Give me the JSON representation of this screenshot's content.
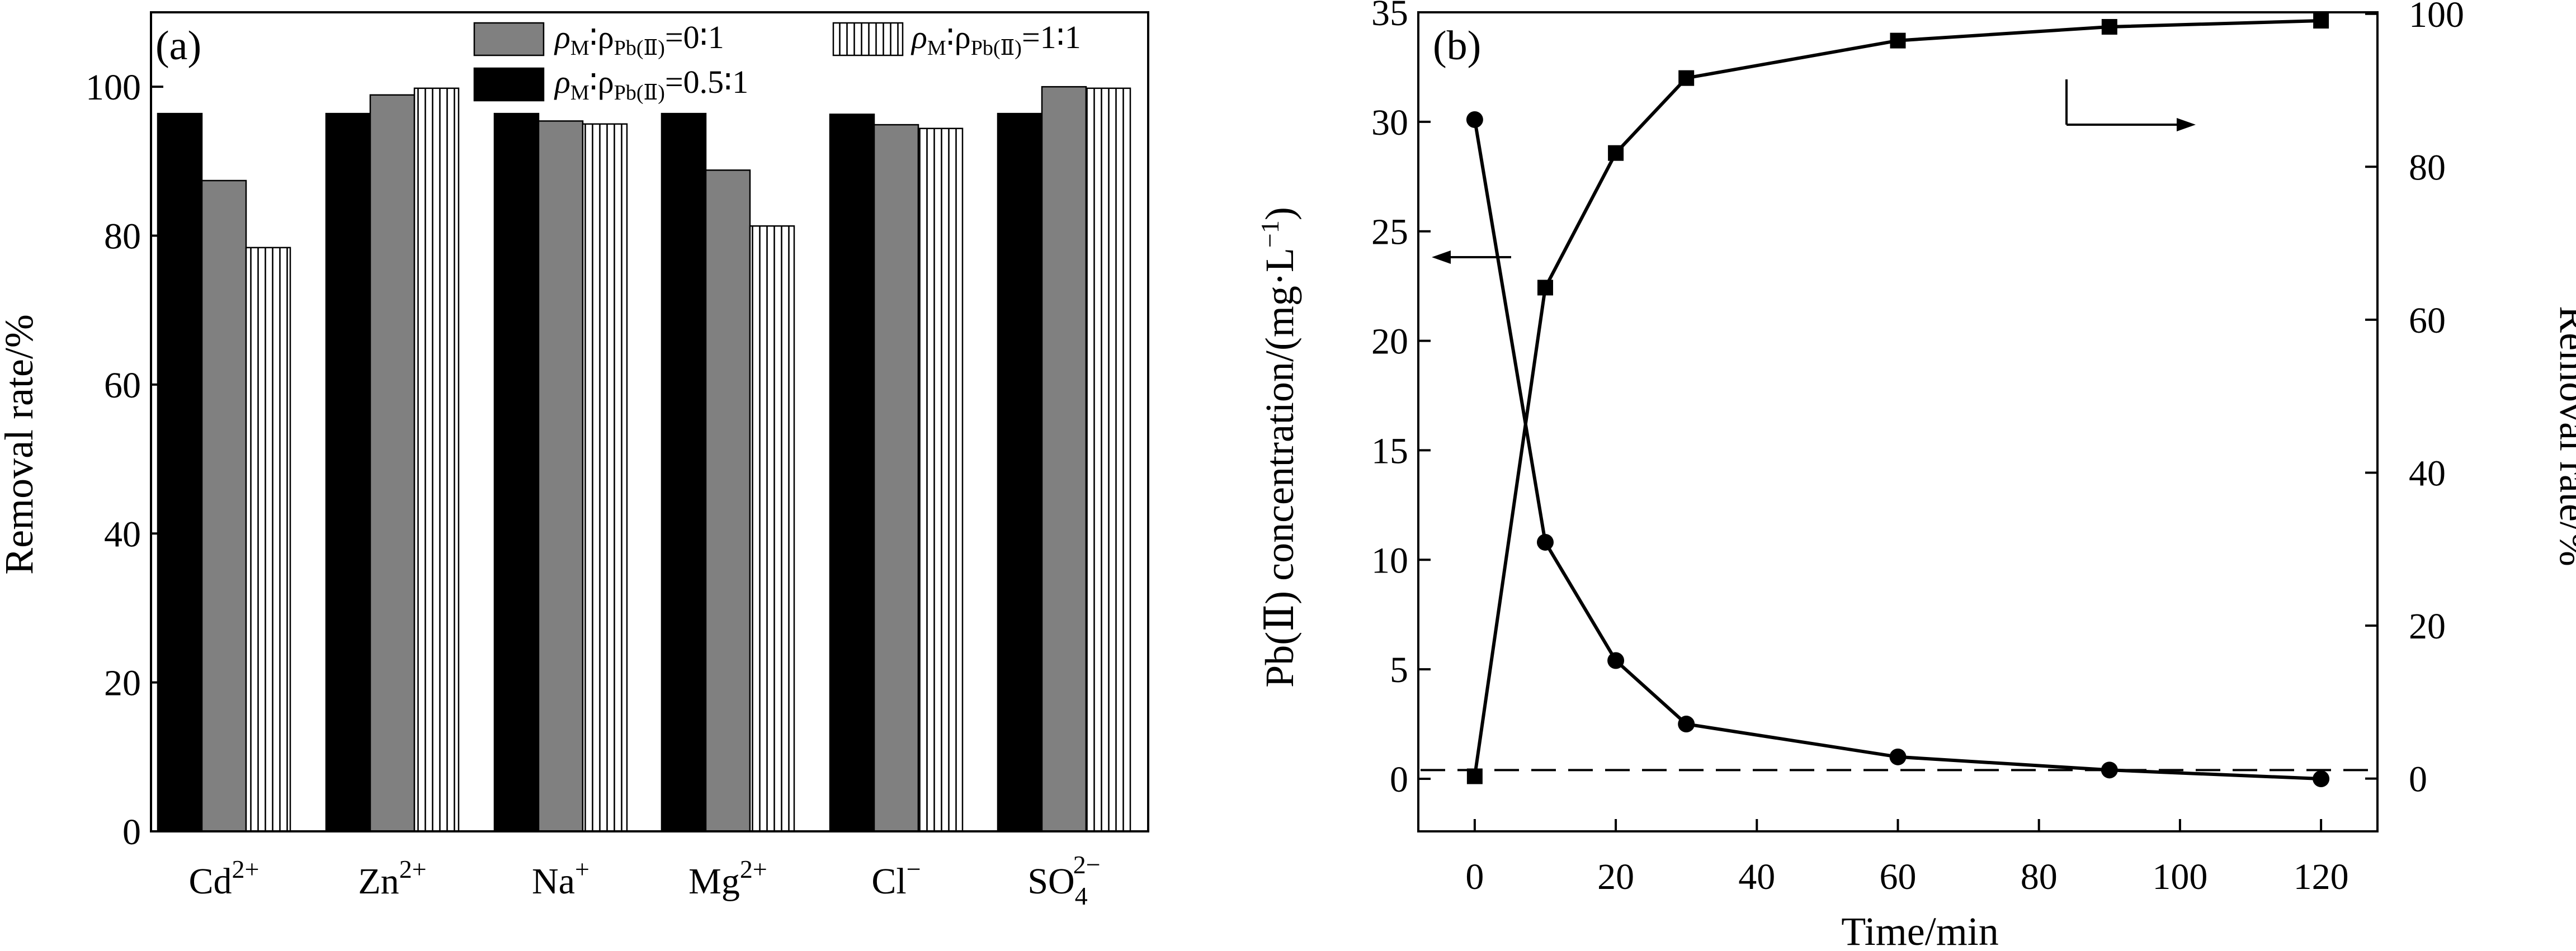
{
  "chart_data": [
    {
      "type": "bar",
      "panel_label": "(a)",
      "categories": [
        "Cd2+",
        "Zn2+",
        "Na+",
        "Mg2+",
        "Cl−",
        "SO42−"
      ],
      "category_labels": [
        {
          "base": "Cd",
          "sup": "2+",
          "sub": ""
        },
        {
          "base": "Zn",
          "sup": "2+",
          "sub": ""
        },
        {
          "base": "Na",
          "sup": "+",
          "sub": ""
        },
        {
          "base": "Mg",
          "sup": "2+",
          "sub": ""
        },
        {
          "base": "Cl",
          "sup": "−",
          "sub": ""
        },
        {
          "base": "SO",
          "sup": "2−",
          "sub": "4"
        }
      ],
      "series": [
        {
          "name": "ρM∶ρPb(Ⅱ)=0.5∶1",
          "legend": {
            "a": "ρ",
            "b": "M",
            "c": "∶ρ",
            "d": "Pb(Ⅱ)",
            "e": "=0.5∶1"
          },
          "fill": "#000000",
          "pattern": "solid",
          "values": [
            96.4,
            96.4,
            96.4,
            96.4,
            96.3,
            96.4
          ]
        },
        {
          "name": "ρM∶ρPb(Ⅱ)=0∶1",
          "legend": {
            "a": "ρ",
            "b": "M",
            "c": "∶ρ",
            "d": "Pb(Ⅱ)",
            "e": "=0∶1"
          },
          "fill": "#808080",
          "pattern": "solid",
          "values": [
            87.4,
            98.9,
            95.4,
            88.8,
            94.9,
            100.0
          ]
        },
        {
          "name": "ρM∶ρPb(Ⅱ)=1∶1",
          "legend": {
            "a": "ρ",
            "b": "M",
            "c": "∶ρ",
            "d": "Pb(Ⅱ)",
            "e": "=1∶1"
          },
          "fill": "#ffffff",
          "pattern": "vertical-lines",
          "values": [
            78.4,
            99.8,
            95.0,
            81.3,
            94.4,
            99.8
          ]
        }
      ],
      "ylabel": "Removal rate/%",
      "ylim": [
        0,
        110
      ],
      "yticks": [
        0,
        20,
        40,
        60,
        80,
        100
      ],
      "grid": false,
      "legend_position": "top-right"
    },
    {
      "type": "line",
      "panel_label": "(b)",
      "xlabel": "Time/min",
      "xlim": [
        -8,
        128
      ],
      "xticks": [
        0,
        20,
        40,
        60,
        80,
        100,
        120
      ],
      "y_left": {
        "label": "Pb(Ⅱ) concentration/(mg·L−1)",
        "label_parts": {
          "a": "Pb(Ⅱ) concentration/(mg·L",
          "sup": "−1",
          "b": ")"
        },
        "lim": [
          -2.4,
          35
        ],
        "ticks": [
          0,
          5,
          10,
          15,
          20,
          25,
          30,
          35
        ]
      },
      "y_right": {
        "label": "Removal rate/%",
        "lim": [
          -6.9,
          100.2
        ],
        "ticks": [
          0,
          20,
          40,
          60,
          80,
          100
        ]
      },
      "series": [
        {
          "axis": "left",
          "marker": "circle",
          "x": [
            0,
            10,
            20,
            30,
            60,
            90,
            120
          ],
          "y": [
            30.1,
            10.8,
            5.4,
            2.5,
            1.0,
            0.4,
            0.0
          ]
        },
        {
          "axis": "right",
          "marker": "square",
          "x": [
            0,
            10,
            20,
            30,
            60,
            90,
            120
          ],
          "y": [
            0.3,
            64.2,
            81.8,
            91.6,
            96.5,
            98.3,
            99.1
          ]
        }
      ],
      "reference_line": {
        "axis": "left",
        "y": 0.4,
        "style": "dashed"
      },
      "grid": false
    }
  ]
}
